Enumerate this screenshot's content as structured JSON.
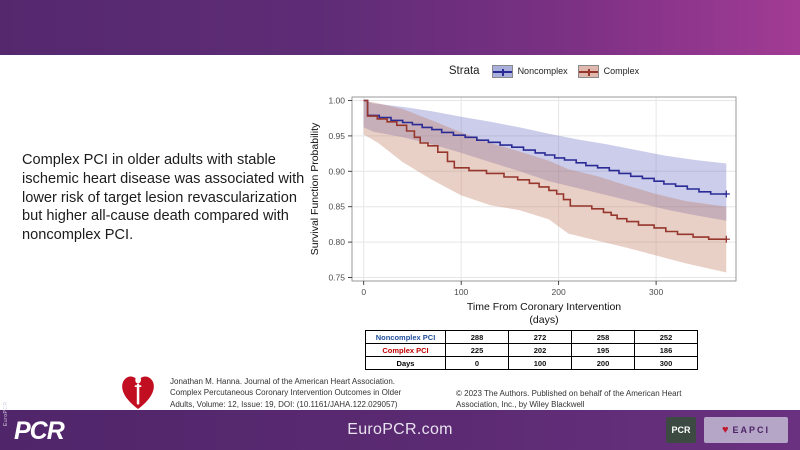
{
  "summary": {
    "text": "Complex PCI in older adults with stable ischemic heart disease was associated with lower risk of target lesion revascularization but higher all-cause death compared with noncomplex PCI."
  },
  "legend": {
    "title": "Strata",
    "items": [
      {
        "label": "Noncomplex",
        "fill": "#aab0dc",
        "stroke": "#2b2b96"
      },
      {
        "label": "Complex",
        "fill": "#dfb9ae",
        "stroke": "#96362c"
      }
    ]
  },
  "chart_data": {
    "type": "line",
    "subtype": "kaplan_meier_step",
    "title": "",
    "legend_title": "Strata",
    "legend_position": "top",
    "xlabel_line1": "Time From Coronary Intervention",
    "xlabel_line2": "(days)",
    "ylabel": "Survival Function Probability",
    "xticks": [
      0,
      100,
      200,
      300
    ],
    "yticks": [
      0.75,
      0.8,
      0.85,
      0.9,
      0.95,
      1.0
    ],
    "xlim": [
      -12,
      382
    ],
    "ylim": [
      0.745,
      1.005
    ],
    "grid": true,
    "series": [
      {
        "name": "Noncomplex",
        "color": "#2b2b96",
        "band_color": "#6a71c2",
        "points": [
          [
            0,
            1.0
          ],
          [
            4,
            0.979
          ],
          [
            16,
            0.976
          ],
          [
            28,
            0.972
          ],
          [
            40,
            0.969
          ],
          [
            50,
            0.966
          ],
          [
            60,
            0.962
          ],
          [
            70,
            0.959
          ],
          [
            80,
            0.955
          ],
          [
            92,
            0.951
          ],
          [
            104,
            0.948
          ],
          [
            116,
            0.944
          ],
          [
            128,
            0.941
          ],
          [
            140,
            0.937
          ],
          [
            152,
            0.934
          ],
          [
            164,
            0.93
          ],
          [
            176,
            0.926
          ],
          [
            186,
            0.923
          ],
          [
            196,
            0.919
          ],
          [
            206,
            0.916
          ],
          [
            218,
            0.912
          ],
          [
            228,
            0.908
          ],
          [
            240,
            0.905
          ],
          [
            252,
            0.901
          ],
          [
            262,
            0.897
          ],
          [
            274,
            0.893
          ],
          [
            286,
            0.89
          ],
          [
            298,
            0.886
          ],
          [
            308,
            0.882
          ],
          [
            320,
            0.879
          ],
          [
            332,
            0.875
          ],
          [
            344,
            0.871
          ],
          [
            356,
            0.868
          ],
          [
            372,
            0.868
          ]
        ],
        "censor_x": [
          372
        ],
        "band": {
          "upper": [
            [
              0,
              1.0
            ],
            [
              10,
              0.996
            ],
            [
              40,
              0.991
            ],
            [
              70,
              0.985
            ],
            [
              100,
              0.977
            ],
            [
              130,
              0.97
            ],
            [
              160,
              0.962
            ],
            [
              190,
              0.953
            ],
            [
              220,
              0.945
            ],
            [
              250,
              0.938
            ],
            [
              280,
              0.93
            ],
            [
              310,
              0.922
            ],
            [
              340,
              0.916
            ],
            [
              372,
              0.911
            ]
          ],
          "lower": [
            [
              0,
              0.962
            ],
            [
              10,
              0.956
            ],
            [
              40,
              0.948
            ],
            [
              70,
              0.938
            ],
            [
              100,
              0.926
            ],
            [
              130,
              0.913
            ],
            [
              160,
              0.9
            ],
            [
              190,
              0.886
            ],
            [
              220,
              0.876
            ],
            [
              250,
              0.866
            ],
            [
              280,
              0.856
            ],
            [
              310,
              0.846
            ],
            [
              340,
              0.838
            ],
            [
              372,
              0.83
            ]
          ]
        }
      },
      {
        "name": "Complex",
        "color": "#96362c",
        "band_color": "#c1785f",
        "points": [
          [
            0,
            1.0
          ],
          [
            4,
            0.978
          ],
          [
            14,
            0.974
          ],
          [
            24,
            0.97
          ],
          [
            34,
            0.965
          ],
          [
            44,
            0.957
          ],
          [
            52,
            0.948
          ],
          [
            58,
            0.94
          ],
          [
            66,
            0.936
          ],
          [
            76,
            0.927
          ],
          [
            86,
            0.914
          ],
          [
            93,
            0.905
          ],
          [
            108,
            0.901
          ],
          [
            126,
            0.897
          ],
          [
            144,
            0.892
          ],
          [
            158,
            0.888
          ],
          [
            170,
            0.883
          ],
          [
            180,
            0.878
          ],
          [
            190,
            0.873
          ],
          [
            198,
            0.868
          ],
          [
            205,
            0.86
          ],
          [
            212,
            0.851
          ],
          [
            234,
            0.847
          ],
          [
            246,
            0.842
          ],
          [
            254,
            0.838
          ],
          [
            260,
            0.833
          ],
          [
            270,
            0.829
          ],
          [
            282,
            0.824
          ],
          [
            298,
            0.82
          ],
          [
            310,
            0.815
          ],
          [
            322,
            0.811
          ],
          [
            338,
            0.807
          ],
          [
            354,
            0.804
          ],
          [
            372,
            0.804
          ]
        ],
        "censor_x": [
          372
        ],
        "band": {
          "upper": [
            [
              0,
              1.0
            ],
            [
              15,
              0.996
            ],
            [
              40,
              0.988
            ],
            [
              70,
              0.972
            ],
            [
              100,
              0.955
            ],
            [
              130,
              0.94
            ],
            [
              160,
              0.928
            ],
            [
              190,
              0.915
            ],
            [
              210,
              0.903
            ],
            [
              240,
              0.893
            ],
            [
              270,
              0.88
            ],
            [
              300,
              0.868
            ],
            [
              330,
              0.858
            ],
            [
              372,
              0.85
            ]
          ],
          "lower": [
            [
              0,
              0.952
            ],
            [
              15,
              0.94
            ],
            [
              40,
              0.913
            ],
            [
              70,
              0.888
            ],
            [
              100,
              0.866
            ],
            [
              130,
              0.852
            ],
            [
              160,
              0.845
            ],
            [
              190,
              0.832
            ],
            [
              210,
              0.812
            ],
            [
              240,
              0.802
            ],
            [
              270,
              0.792
            ],
            [
              300,
              0.781
            ],
            [
              330,
              0.77
            ],
            [
              372,
              0.757
            ]
          ]
        }
      }
    ]
  },
  "risk_table": {
    "rows": [
      {
        "label": "Noncomplex PCI",
        "color": "#1f4e9c",
        "values": [
          "288",
          "272",
          "258",
          "252"
        ]
      },
      {
        "label": "Complex PCI",
        "color": "#c00000",
        "values": [
          "225",
          "202",
          "195",
          "186"
        ]
      },
      {
        "label": "Days",
        "color": "#000000",
        "values": [
          "0",
          "100",
          "200",
          "300"
        ]
      }
    ]
  },
  "citation": {
    "lines": [
      "Jonathan M. Hanna. Journal of the American Heart Association.",
      "Complex Percutaneous Coronary Intervention Outcomes in Older",
      "Adults, Volume: 12, Issue: 19, DOI: (10.1161/JAHA.122.029057)"
    ]
  },
  "copyright": {
    "lines": [
      "© 2023 The Authors. Published on behalf of the American Heart",
      "Association, Inc., by Wiley Blackwell"
    ]
  },
  "footer": {
    "site": "EuroPCR.com",
    "pcr_logo": "PCR",
    "pcr_logo_vertical": "EuroPCR",
    "pcr_badge": "PCR",
    "eapci_badge": "EAPCI"
  }
}
